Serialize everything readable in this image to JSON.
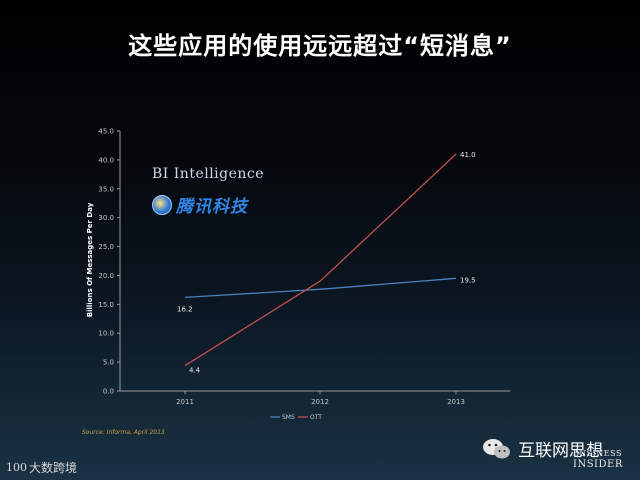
{
  "title": "这些应用的使用远远超过“短消息”",
  "watermarks": {
    "bi_intelligence": "BI Intelligence",
    "tencent_tech": "腾讯科技"
  },
  "source": "Source: Informa, April 2013",
  "branding": {
    "business_insider_top": "BUSINESS",
    "business_insider_bottom": "INSIDER",
    "wechat_account": "互联网思想",
    "footer_logo_mark": "100",
    "footer_logo_text": "大数跨境"
  },
  "colors": {
    "sms": "#4a7fc1",
    "ott": "#c0504d"
  },
  "chart_data": {
    "type": "line",
    "ylabel": "Billions Of Messages Per Day",
    "xlabel": "",
    "x": [
      "2011",
      "2012",
      "2013"
    ],
    "ylim": [
      0,
      45
    ],
    "yticks": [
      "0.0",
      "5.0",
      "10.0",
      "15.0",
      "20.0",
      "25.0",
      "30.0",
      "35.0",
      "40.0",
      "45.0"
    ],
    "grid": false,
    "legend_position": "bottom",
    "series": [
      {
        "name": "SMS",
        "values": [
          16.2,
          17.6,
          19.5
        ],
        "labels": [
          "16.2",
          "",
          "19.5"
        ]
      },
      {
        "name": "OTT",
        "values": [
          4.4,
          19.0,
          41.0
        ],
        "labels": [
          "4.4",
          "",
          "41.0"
        ]
      }
    ]
  }
}
